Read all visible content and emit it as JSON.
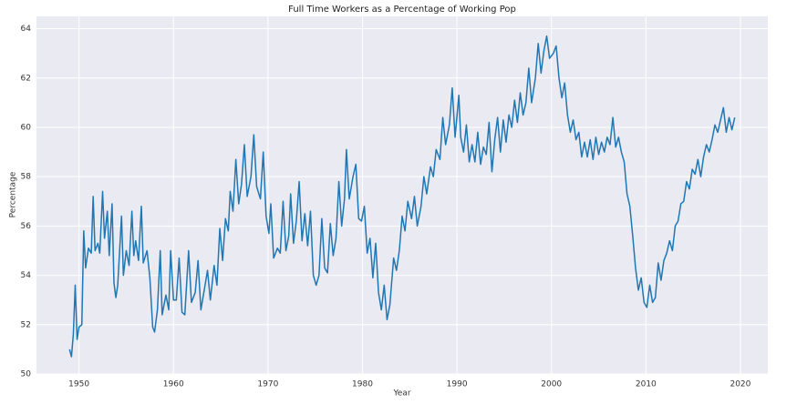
{
  "chart_data": {
    "type": "line",
    "title": "Full Time Workers as a Percentage of Working Pop",
    "x_label": "Year",
    "y_label": "Percentage",
    "xlim": [
      1945.5,
      2022.9
    ],
    "ylim": [
      50,
      64.5
    ],
    "xticks": [
      1950,
      1960,
      1970,
      1980,
      1990,
      2000,
      2010,
      2020
    ],
    "yticks": [
      50,
      52,
      54,
      56,
      58,
      60,
      62,
      64
    ],
    "grid": true,
    "x": [
      1949.0,
      1949.2,
      1949.4,
      1949.6,
      1949.8,
      1950.0,
      1950.3,
      1950.5,
      1950.7,
      1951.0,
      1951.3,
      1951.5,
      1951.7,
      1952.0,
      1952.2,
      1952.5,
      1952.7,
      1953.0,
      1953.2,
      1953.5,
      1953.7,
      1953.9,
      1954.1,
      1954.5,
      1954.7,
      1955.0,
      1955.3,
      1955.6,
      1955.8,
      1956.0,
      1956.3,
      1956.6,
      1956.8,
      1957.2,
      1957.5,
      1957.8,
      1958.0,
      1958.3,
      1958.6,
      1958.8,
      1959.2,
      1959.5,
      1959.7,
      1960.0,
      1960.3,
      1960.6,
      1960.9,
      1961.2,
      1961.6,
      1961.9,
      1962.3,
      1962.6,
      1962.9,
      1963.3,
      1963.6,
      1963.9,
      1964.3,
      1964.6,
      1964.9,
      1965.2,
      1965.5,
      1965.8,
      1966.0,
      1966.3,
      1966.6,
      1966.9,
      1967.2,
      1967.5,
      1967.8,
      1968.2,
      1968.5,
      1968.8,
      1969.2,
      1969.5,
      1969.8,
      1970.1,
      1970.3,
      1970.6,
      1971.0,
      1971.3,
      1971.6,
      1971.9,
      1972.2,
      1972.4,
      1972.7,
      1973.0,
      1973.3,
      1973.6,
      1973.9,
      1974.2,
      1974.5,
      1974.8,
      1975.1,
      1975.4,
      1975.7,
      1976.0,
      1976.3,
      1976.6,
      1976.9,
      1977.2,
      1977.5,
      1977.8,
      1978.1,
      1978.3,
      1978.6,
      1979.0,
      1979.3,
      1979.6,
      1979.9,
      1980.2,
      1980.5,
      1980.8,
      1981.1,
      1981.4,
      1981.7,
      1982.0,
      1982.3,
      1982.6,
      1982.9,
      1983.3,
      1983.6,
      1983.9,
      1984.2,
      1984.5,
      1984.8,
      1985.2,
      1985.5,
      1985.8,
      1986.2,
      1986.5,
      1986.8,
      1987.2,
      1987.5,
      1987.8,
      1988.2,
      1988.5,
      1988.8,
      1989.2,
      1989.5,
      1989.8,
      1990.2,
      1990.4,
      1990.7,
      1991.0,
      1991.3,
      1991.6,
      1991.9,
      1992.2,
      1992.5,
      1992.8,
      1993.1,
      1993.4,
      1993.7,
      1994.0,
      1994.3,
      1994.6,
      1994.9,
      1995.2,
      1995.5,
      1995.8,
      1996.1,
      1996.4,
      1996.7,
      1997.0,
      1997.3,
      1997.6,
      1997.9,
      1998.3,
      1998.6,
      1998.9,
      1999.2,
      1999.5,
      1999.8,
      2000.2,
      2000.5,
      2000.8,
      2001.1,
      2001.4,
      2001.7,
      2002.0,
      2002.3,
      2002.6,
      2002.9,
      2003.2,
      2003.5,
      2003.8,
      2004.1,
      2004.4,
      2004.7,
      2005.0,
      2005.3,
      2005.6,
      2005.9,
      2006.2,
      2006.5,
      2006.8,
      2007.1,
      2007.4,
      2007.7,
      2008.0,
      2008.3,
      2008.6,
      2008.9,
      2009.2,
      2009.5,
      2009.8,
      2010.1,
      2010.4,
      2010.7,
      2011.0,
      2011.3,
      2011.6,
      2011.9,
      2012.2,
      2012.5,
      2012.8,
      2013.1,
      2013.4,
      2013.7,
      2014.0,
      2014.3,
      2014.6,
      2014.9,
      2015.2,
      2015.5,
      2015.8,
      2016.1,
      2016.4,
      2016.7,
      2017.0,
      2017.3,
      2017.6,
      2017.9,
      2018.2,
      2018.5,
      2018.8,
      2019.1,
      2019.4
    ],
    "series": [
      {
        "color": "#1f77b4",
        "values": [
          51.0,
          50.7,
          51.6,
          53.6,
          51.4,
          51.9,
          52.0,
          55.8,
          54.3,
          55.1,
          54.9,
          57.2,
          55.0,
          55.3,
          54.9,
          57.4,
          55.5,
          56.6,
          54.8,
          56.9,
          53.7,
          53.1,
          53.6,
          56.4,
          54.0,
          55.0,
          54.4,
          56.6,
          54.8,
          55.4,
          54.6,
          56.8,
          54.5,
          55.0,
          53.9,
          51.9,
          51.7,
          52.6,
          55.0,
          52.4,
          53.2,
          52.6,
          55.0,
          53.0,
          53.0,
          54.7,
          52.5,
          52.4,
          55.0,
          52.9,
          53.3,
          54.6,
          52.6,
          53.5,
          54.2,
          53.0,
          54.4,
          53.6,
          55.9,
          54.6,
          56.3,
          55.8,
          57.4,
          56.6,
          58.7,
          56.9,
          57.7,
          59.3,
          57.2,
          58.0,
          59.7,
          57.6,
          57.1,
          59.0,
          56.4,
          55.7,
          56.9,
          54.7,
          55.1,
          54.9,
          57.0,
          55.0,
          55.6,
          57.3,
          55.3,
          56.2,
          57.8,
          55.4,
          56.5,
          55.2,
          56.6,
          54.0,
          53.6,
          54.0,
          56.3,
          54.3,
          54.1,
          56.1,
          54.8,
          55.5,
          57.8,
          56.0,
          57.1,
          59.1,
          57.1,
          58.0,
          58.5,
          56.3,
          56.2,
          56.8,
          54.9,
          55.5,
          53.9,
          55.3,
          53.3,
          52.6,
          53.6,
          52.2,
          52.8,
          54.7,
          54.2,
          55.0,
          56.4,
          55.8,
          57.0,
          56.3,
          57.2,
          56.0,
          56.8,
          58.0,
          57.3,
          58.4,
          58.0,
          59.1,
          58.7,
          60.4,
          59.3,
          60.1,
          61.6,
          59.6,
          61.3,
          59.6,
          59.0,
          60.1,
          58.6,
          59.3,
          58.6,
          59.8,
          58.5,
          59.2,
          58.9,
          60.2,
          58.2,
          59.5,
          60.4,
          59.0,
          60.3,
          59.4,
          60.5,
          60.0,
          61.1,
          60.2,
          61.4,
          60.5,
          61.0,
          62.4,
          61.0,
          62.0,
          63.4,
          62.2,
          63.1,
          63.7,
          62.8,
          63.0,
          63.3,
          62.0,
          61.2,
          61.8,
          60.5,
          59.8,
          60.3,
          59.5,
          59.8,
          58.8,
          59.4,
          58.8,
          59.5,
          58.7,
          59.6,
          58.9,
          59.4,
          59.0,
          59.6,
          59.3,
          60.4,
          59.2,
          59.6,
          59.0,
          58.6,
          57.3,
          56.8,
          55.6,
          54.3,
          53.4,
          53.9,
          52.9,
          52.7,
          53.6,
          52.9,
          53.1,
          54.5,
          53.8,
          54.6,
          54.9,
          55.4,
          55.0,
          56.0,
          56.2,
          56.9,
          57.0,
          57.8,
          57.5,
          58.3,
          58.1,
          58.7,
          58.0,
          58.8,
          59.3,
          59.0,
          59.5,
          60.1,
          59.8,
          60.3,
          60.8,
          59.8,
          60.4,
          59.9,
          60.4
        ]
      }
    ]
  }
}
